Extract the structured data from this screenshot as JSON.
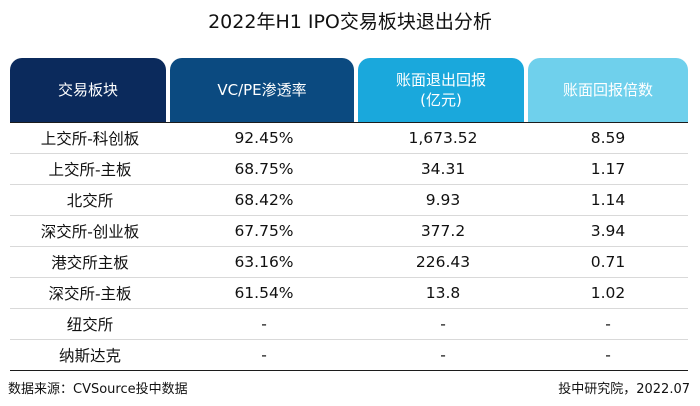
{
  "title": "2022年H1  IPO交易板块退出分析",
  "colors": {
    "header_1": "#0b2a5c",
    "header_2": "#0b4a80",
    "header_3": "#1aa8dc",
    "header_4": "#6fd0ec"
  },
  "table": {
    "headers": [
      "交易板块",
      "VC/PE渗透率",
      "账面退出回报\n(亿元)",
      "账面回报倍数"
    ],
    "rows": [
      [
        "上交所-科创板",
        "92.45%",
        "1,673.52",
        "8.59"
      ],
      [
        "上交所-主板",
        "68.75%",
        "34.31",
        "1.17"
      ],
      [
        "北交所",
        "68.42%",
        "9.93",
        "1.14"
      ],
      [
        "深交所-创业板",
        "67.75%",
        "377.2",
        "3.94"
      ],
      [
        "港交所主板",
        "63.16%",
        "226.43",
        "0.71"
      ],
      [
        "深交所-主板",
        "61.54%",
        "13.8",
        "1.02"
      ],
      [
        "纽交所",
        "-",
        "-",
        "-"
      ],
      [
        "纳斯达克",
        "-",
        "-",
        "-"
      ]
    ]
  },
  "footer": {
    "source": "数据来源：CVSource投中数据",
    "credit": "投中研究院，2022.07"
  }
}
